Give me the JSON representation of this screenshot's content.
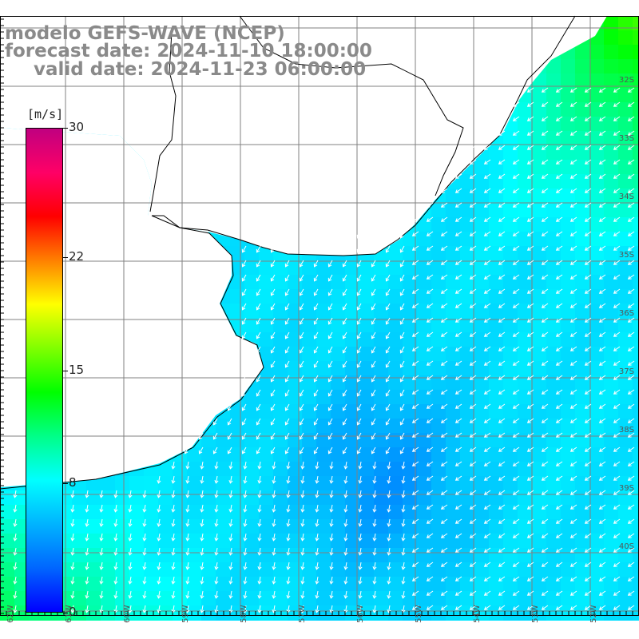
{
  "header": {
    "line1": "modelo GEFS-WAVE (NCEP)",
    "line2": "forecast date: 2024-11-10 18:00:00",
    "line3": "valid date: 2024-11-23 06:00:00"
  },
  "colorbar": {
    "units": "[m/s]",
    "min": 0,
    "max": 30,
    "ticks": [
      {
        "label": "30",
        "value": 30
      },
      {
        "label": "22",
        "value": 22
      },
      {
        "label": "15",
        "value": 15
      },
      {
        "label": "8",
        "value": 8
      },
      {
        "label": "0",
        "value": 0
      }
    ],
    "colors": [
      "#0000ff",
      "#0066ff",
      "#00b4ff",
      "#00ffff",
      "#00ff88",
      "#00ff00",
      "#80ff00",
      "#ffff00",
      "#ff8000",
      "#ff0000",
      "#ff0066",
      "#c00080"
    ]
  },
  "map": {
    "land_color": "#ffffff",
    "coast_color": "#000000",
    "grid_color": "#808080",
    "arrow_color": "#ffffff",
    "lat_labels": [
      "32S",
      "33S",
      "34S",
      "35S",
      "36S",
      "37S",
      "38S",
      "39S",
      "40S"
    ],
    "lon_labels": [
      "62W",
      "61W",
      "60W",
      "59W",
      "58W",
      "57W",
      "56W",
      "55W",
      "54W",
      "53W",
      "52W"
    ]
  }
}
